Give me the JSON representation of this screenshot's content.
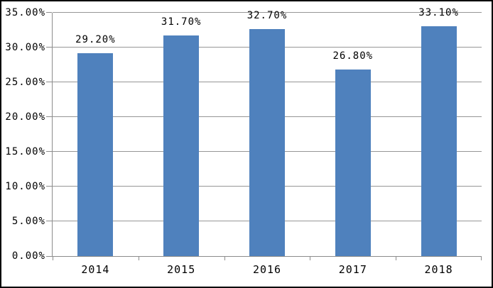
{
  "chart_data": {
    "type": "bar",
    "categories": [
      "2014",
      "2015",
      "2016",
      "2017",
      "2018"
    ],
    "values": [
      29.2,
      31.7,
      32.7,
      26.8,
      33.1
    ],
    "value_labels": [
      "29.20%",
      "31.70%",
      "32.70%",
      "26.80%",
      "33.10%"
    ],
    "title": "",
    "xlabel": "",
    "ylabel": "",
    "ylim": [
      0,
      35
    ],
    "ytick_step": 5,
    "ytick_labels": [
      "0.00%",
      "5.00%",
      "10.00%",
      "15.00%",
      "20.00%",
      "25.00%",
      "30.00%",
      "35.00%"
    ],
    "grid": true,
    "legend_position": "none",
    "colors": {
      "bar_fill": "#4f81bd",
      "gridline": "#969696",
      "axis_line": "#8c8c8c",
      "text": "#000000",
      "background": "#ffffff",
      "outer_border": "#000000"
    }
  }
}
